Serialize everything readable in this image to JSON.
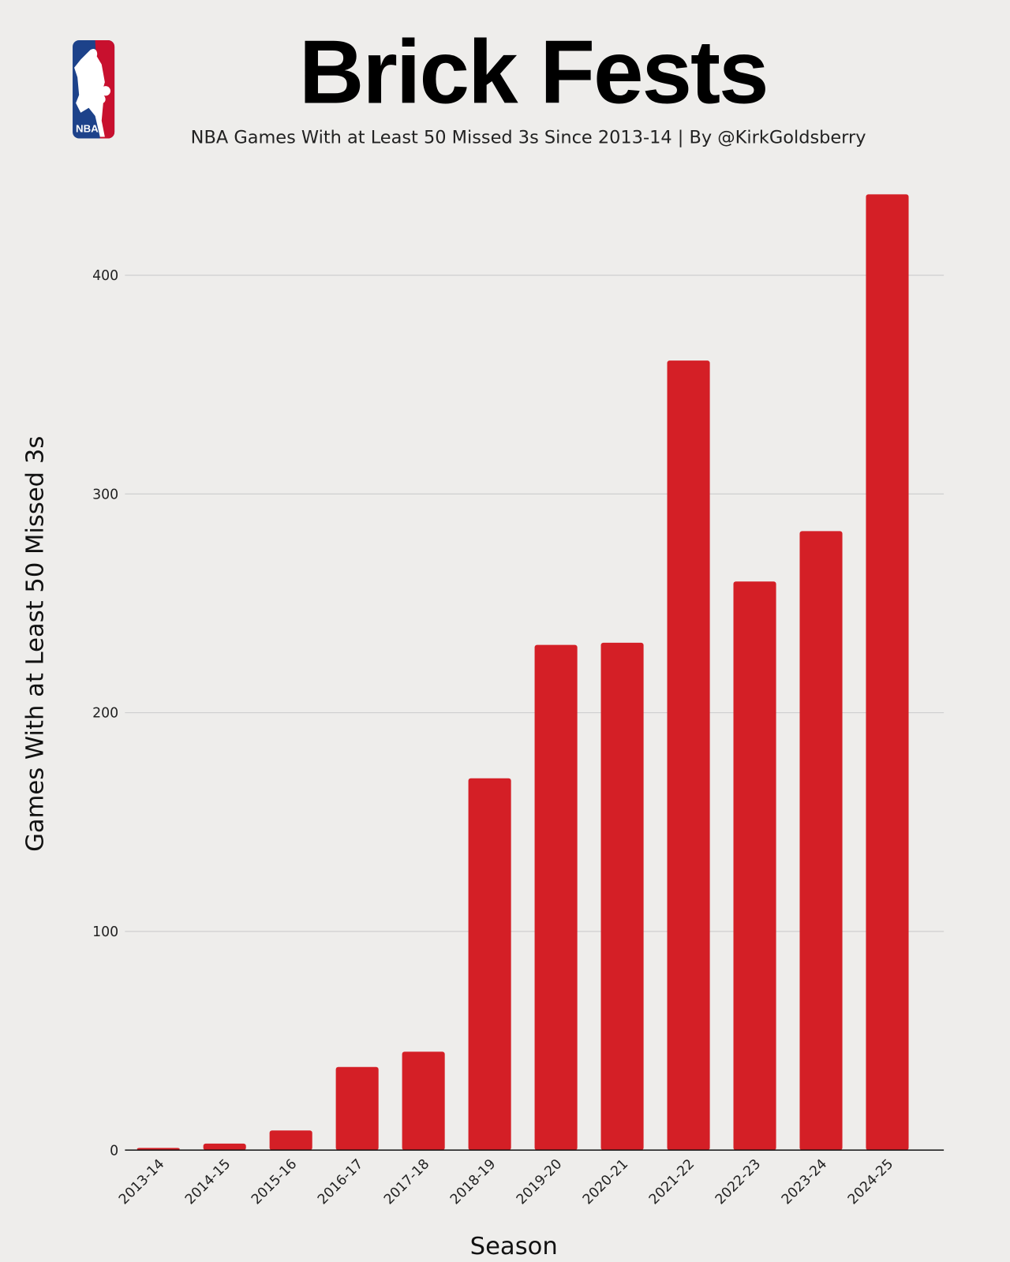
{
  "logo": {
    "text": "NBA",
    "colors": {
      "blue": "#1d428a",
      "red": "#c8102e"
    }
  },
  "chart_data": {
    "type": "bar",
    "title": "Brick Fests",
    "subtitle": "NBA Games With at Least 50 Missed 3s Since 2013-14 | By @KirkGoldsberry",
    "xlabel": "Season",
    "ylabel": "Games With at Least 50 Missed 3s",
    "categories": [
      "2013-14",
      "2014-15",
      "2015-16",
      "2016-17",
      "2017-18",
      "2018-19",
      "2019-20",
      "2020-21",
      "2021-22",
      "2022-23",
      "2023-24",
      "2024-25"
    ],
    "values": [
      1,
      3,
      9,
      38,
      45,
      170,
      231,
      232,
      361,
      260,
      283,
      437
    ],
    "yticks": [
      0,
      100,
      200,
      300,
      400
    ],
    "ylim": [
      0,
      440
    ],
    "grid": true,
    "bar_color": "#d41f26",
    "background": "#eeedeb"
  }
}
